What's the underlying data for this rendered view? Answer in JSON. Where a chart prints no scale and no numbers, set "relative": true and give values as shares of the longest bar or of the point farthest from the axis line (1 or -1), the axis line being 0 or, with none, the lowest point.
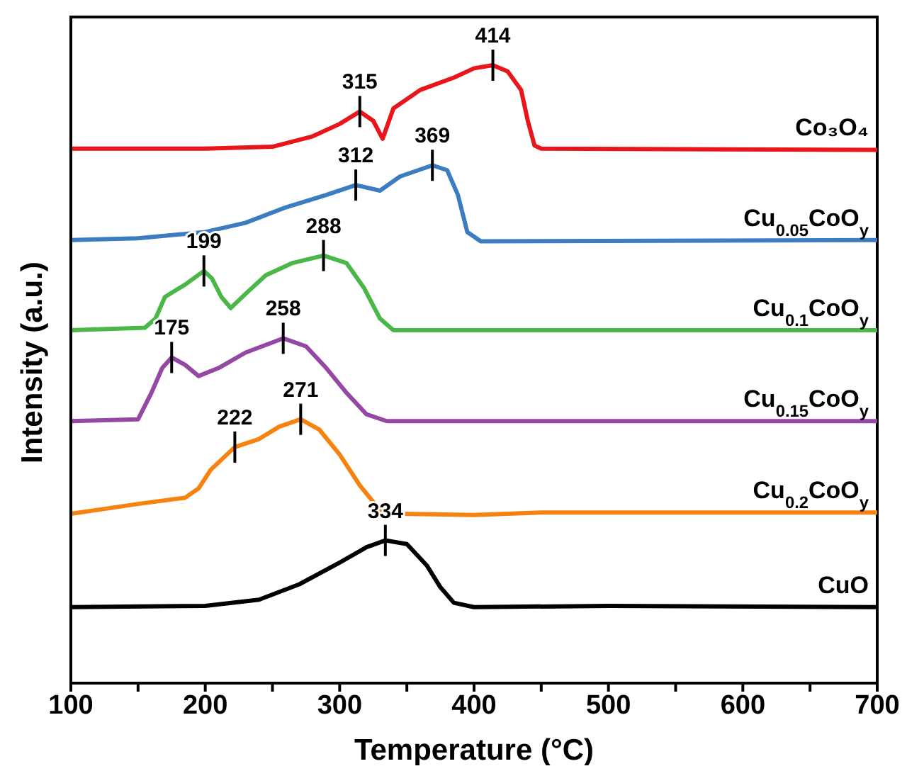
{
  "chart_data": {
    "type": "line",
    "relative": true,
    "xlabel": "Temperature (°C)",
    "ylabel": "Intensity (a.u.)",
    "xlim": [
      100,
      700
    ],
    "xticks": [
      100,
      {
        "value": 150,
        "label": null
      },
      200,
      {
        "value": 250,
        "label": null
      },
      300,
      {
        "value": 350,
        "label": null
      },
      400,
      {
        "value": 450,
        "label": null
      },
      500,
      {
        "value": 550,
        "label": null
      },
      600,
      {
        "value": 650,
        "label": null
      },
      700
    ],
    "marker": "none",
    "line_style": "solid",
    "series": [
      {
        "name": "Co₃O₄",
        "color": "#e8161b",
        "x": [
          100,
          200,
          250,
          280,
          300,
          315,
          325,
          332,
          340,
          360,
          385,
          400,
          414,
          425,
          435,
          440,
          445,
          450,
          700
        ],
        "values": [
          0.865,
          0.865,
          0.868,
          0.885,
          0.905,
          0.925,
          0.91,
          0.881,
          0.93,
          0.96,
          0.98,
          0.995,
          1.0,
          0.99,
          0.96,
          0.91,
          0.87,
          0.865,
          0.863
        ]
      },
      {
        "name": "Cu$_{0.05}$CoO$_{y}$",
        "color": "#3b7dc0",
        "x": [
          100,
          150,
          200,
          230,
          260,
          290,
          312,
          330,
          345,
          369,
          380,
          388,
          395,
          405,
          700
        ],
        "values": [
          0.717,
          0.72,
          0.73,
          0.745,
          0.77,
          0.79,
          0.806,
          0.797,
          0.82,
          0.838,
          0.83,
          0.79,
          0.73,
          0.715,
          0.717
        ]
      },
      {
        "name": "Cu$_{0.1}$CoO$_{y}$",
        "color": "#4ab748",
        "x": [
          100,
          155,
          163,
          170,
          185,
          199,
          205,
          212,
          219,
          230,
          245,
          265,
          288,
          305,
          318,
          330,
          340,
          700
        ],
        "values": [
          0.571,
          0.575,
          0.59,
          0.625,
          0.645,
          0.667,
          0.655,
          0.625,
          0.607,
          0.63,
          0.66,
          0.68,
          0.692,
          0.68,
          0.64,
          0.59,
          0.571,
          0.571
        ]
      },
      {
        "name": "Cu$_{0.15}$CoO$_{y}$",
        "color": "#9448a4",
        "x": [
          100,
          150,
          160,
          168,
          175,
          185,
          195,
          210,
          230,
          258,
          275,
          290,
          305,
          320,
          335,
          700
        ],
        "values": [
          0.424,
          0.427,
          0.47,
          0.51,
          0.527,
          0.515,
          0.497,
          0.51,
          0.535,
          0.558,
          0.545,
          0.51,
          0.47,
          0.435,
          0.424,
          0.424
        ]
      },
      {
        "name": "Cu$_{0.2}$CoO$_{y}$",
        "color": "#f7820f",
        "x": [
          100,
          150,
          185,
          195,
          204,
          222,
          240,
          255,
          271,
          285,
          300,
          315,
          330,
          345,
          400,
          450,
          700
        ],
        "values": [
          0.274,
          0.29,
          0.3,
          0.315,
          0.345,
          0.382,
          0.395,
          0.415,
          0.427,
          0.41,
          0.37,
          0.32,
          0.28,
          0.274,
          0.272,
          0.276,
          0.276
        ]
      },
      {
        "name": "CuO",
        "color": "#000000",
        "x": [
          100,
          200,
          240,
          270,
          300,
          320,
          334,
          350,
          365,
          375,
          385,
          400,
          500,
          700
        ],
        "values": [
          0.123,
          0.125,
          0.135,
          0.16,
          0.195,
          0.22,
          0.231,
          0.225,
          0.19,
          0.155,
          0.13,
          0.123,
          0.125,
          0.123
        ]
      }
    ],
    "annotations": [
      {
        "text": "414",
        "x": 414,
        "y": 1.0
      },
      {
        "text": "315",
        "x": 315,
        "y": 0.925
      },
      {
        "text": "369",
        "x": 369,
        "y": 0.838
      },
      {
        "text": "312",
        "x": 312,
        "y": 0.806
      },
      {
        "text": "288",
        "x": 288,
        "y": 0.692
      },
      {
        "text": "199",
        "x": 199,
        "y": 0.667
      },
      {
        "text": "258",
        "x": 258,
        "y": 0.558
      },
      {
        "text": "175",
        "x": 175,
        "y": 0.527
      },
      {
        "text": "271",
        "x": 271,
        "y": 0.427
      },
      {
        "text": "222",
        "x": 222,
        "y": 0.382
      },
      {
        "text": "334",
        "x": 334,
        "y": 0.231
      }
    ]
  }
}
